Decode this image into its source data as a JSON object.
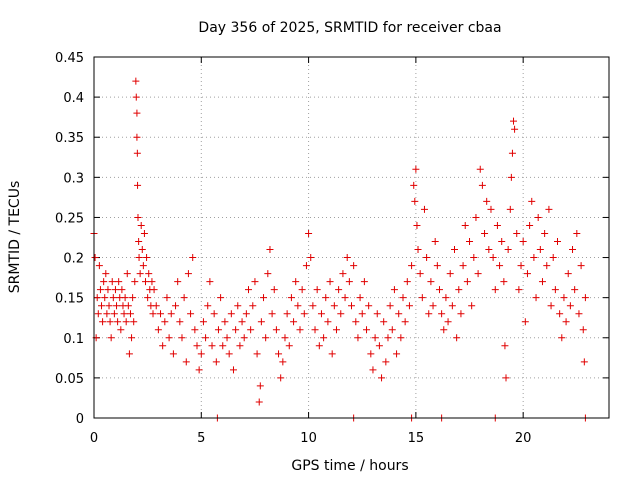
{
  "chart_data": {
    "type": "scatter",
    "title": "Day 356 of 2025, SRMTID for receiver cbaa",
    "xlabel": "GPS time / hours",
    "ylabel": "SRMTID / TECUs",
    "xlim": [
      0,
      24
    ],
    "ylim": [
      0,
      0.45
    ],
    "xticks": [
      0,
      5,
      10,
      15,
      20
    ],
    "xtick_labels": [
      "0",
      "5",
      "10",
      "15",
      "20"
    ],
    "yticks": [
      0,
      0.05,
      0.1,
      0.15,
      0.2,
      0.25,
      0.3,
      0.35,
      0.4,
      0.45
    ],
    "ytick_labels": [
      "0",
      "0.05",
      "0.1",
      "0.15",
      "0.2",
      "0.25",
      "0.3",
      "0.35",
      "0.4",
      "0.45"
    ],
    "grid": true,
    "marker": "plus",
    "color": "#e00000",
    "series": [
      {
        "name": "SRMTID",
        "points": [
          [
            0.0,
            0.23
          ],
          [
            0.05,
            0.2
          ],
          [
            0.1,
            0.1
          ],
          [
            0.15,
            0.15
          ],
          [
            0.2,
            0.13
          ],
          [
            0.25,
            0.19
          ],
          [
            0.3,
            0.16
          ],
          [
            0.35,
            0.14
          ],
          [
            0.4,
            0.12
          ],
          [
            0.45,
            0.17
          ],
          [
            0.5,
            0.15
          ],
          [
            0.55,
            0.18
          ],
          [
            0.6,
            0.13
          ],
          [
            0.65,
            0.16
          ],
          [
            0.7,
            0.14
          ],
          [
            0.75,
            0.12
          ],
          [
            0.8,
            0.1
          ],
          [
            0.85,
            0.17
          ],
          [
            0.9,
            0.15
          ],
          [
            0.95,
            0.13
          ],
          [
            1.0,
            0.16
          ],
          [
            1.05,
            0.14
          ],
          [
            1.1,
            0.12
          ],
          [
            1.15,
            0.17
          ],
          [
            1.2,
            0.15
          ],
          [
            1.25,
            0.11
          ],
          [
            1.3,
            0.16
          ],
          [
            1.35,
            0.14
          ],
          [
            1.4,
            0.13
          ],
          [
            1.45,
            0.15
          ],
          [
            1.5,
            0.12
          ],
          [
            1.55,
            0.18
          ],
          [
            1.6,
            0.14
          ],
          [
            1.65,
            0.08
          ],
          [
            1.7,
            0.13
          ],
          [
            1.75,
            0.1
          ],
          [
            1.8,
            0.15
          ],
          [
            1.85,
            0.12
          ],
          [
            1.9,
            0.17
          ],
          [
            1.95,
            0.42
          ],
          [
            1.97,
            0.4
          ],
          [
            2.0,
            0.38
          ],
          [
            2.0,
            0.35
          ],
          [
            2.02,
            0.33
          ],
          [
            2.03,
            0.29
          ],
          [
            2.05,
            0.25
          ],
          [
            2.08,
            0.22
          ],
          [
            2.1,
            0.2
          ],
          [
            2.15,
            0.18
          ],
          [
            2.2,
            0.24
          ],
          [
            2.25,
            0.21
          ],
          [
            2.3,
            0.19
          ],
          [
            2.35,
            0.23
          ],
          [
            2.4,
            0.17
          ],
          [
            2.45,
            0.2
          ],
          [
            2.5,
            0.15
          ],
          [
            2.55,
            0.18
          ],
          [
            2.6,
            0.16
          ],
          [
            2.65,
            0.14
          ],
          [
            2.7,
            0.17
          ],
          [
            2.75,
            0.13
          ],
          [
            2.8,
            0.16
          ],
          [
            2.9,
            0.14
          ],
          [
            3.0,
            0.11
          ],
          [
            3.1,
            0.13
          ],
          [
            3.2,
            0.09
          ],
          [
            3.3,
            0.12
          ],
          [
            3.4,
            0.15
          ],
          [
            3.5,
            0.1
          ],
          [
            3.6,
            0.13
          ],
          [
            3.7,
            0.08
          ],
          [
            3.8,
            0.14
          ],
          [
            3.9,
            0.17
          ],
          [
            4.0,
            0.12
          ],
          [
            4.1,
            0.1
          ],
          [
            4.2,
            0.15
          ],
          [
            4.3,
            0.07
          ],
          [
            4.4,
            0.18
          ],
          [
            4.5,
            0.13
          ],
          [
            4.6,
            0.2
          ],
          [
            4.7,
            0.11
          ],
          [
            4.8,
            0.09
          ],
          [
            4.9,
            0.06
          ],
          [
            5.0,
            0.08
          ],
          [
            5.1,
            0.12
          ],
          [
            5.2,
            0.1
          ],
          [
            5.3,
            0.14
          ],
          [
            5.4,
            0.17
          ],
          [
            5.5,
            0.09
          ],
          [
            5.6,
            0.13
          ],
          [
            5.7,
            0.07
          ],
          [
            5.8,
            0.11
          ],
          [
            5.9,
            0.15
          ],
          [
            6.0,
            0.09
          ],
          [
            6.1,
            0.12
          ],
          [
            6.2,
            0.1
          ],
          [
            6.3,
            0.08
          ],
          [
            6.4,
            0.13
          ],
          [
            6.5,
            0.06
          ],
          [
            6.6,
            0.11
          ],
          [
            6.7,
            0.14
          ],
          [
            6.8,
            0.09
          ],
          [
            6.9,
            0.12
          ],
          [
            7.0,
            0.1
          ],
          [
            7.1,
            0.13
          ],
          [
            7.2,
            0.16
          ],
          [
            7.3,
            0.11
          ],
          [
            7.4,
            0.14
          ],
          [
            7.5,
            0.17
          ],
          [
            7.6,
            0.08
          ],
          [
            7.7,
            0.02
          ],
          [
            7.75,
            0.04
          ],
          [
            7.8,
            0.12
          ],
          [
            7.9,
            0.15
          ],
          [
            8.0,
            0.1
          ],
          [
            8.1,
            0.18
          ],
          [
            8.2,
            0.21
          ],
          [
            8.3,
            0.13
          ],
          [
            8.4,
            0.16
          ],
          [
            8.5,
            0.11
          ],
          [
            8.6,
            0.08
          ],
          [
            8.7,
            0.05
          ],
          [
            8.8,
            0.07
          ],
          [
            8.9,
            0.1
          ],
          [
            9.0,
            0.13
          ],
          [
            9.1,
            0.09
          ],
          [
            9.2,
            0.15
          ],
          [
            9.3,
            0.12
          ],
          [
            9.4,
            0.17
          ],
          [
            9.5,
            0.14
          ],
          [
            9.6,
            0.11
          ],
          [
            9.7,
            0.16
          ],
          [
            9.8,
            0.13
          ],
          [
            9.9,
            0.19
          ],
          [
            10.0,
            0.23
          ],
          [
            10.1,
            0.2
          ],
          [
            10.2,
            0.14
          ],
          [
            10.3,
            0.11
          ],
          [
            10.4,
            0.16
          ],
          [
            10.5,
            0.09
          ],
          [
            10.6,
            0.13
          ],
          [
            10.7,
            0.1
          ],
          [
            10.8,
            0.15
          ],
          [
            10.9,
            0.12
          ],
          [
            11.0,
            0.17
          ],
          [
            11.1,
            0.08
          ],
          [
            11.2,
            0.14
          ],
          [
            11.3,
            0.11
          ],
          [
            11.4,
            0.16
          ],
          [
            11.5,
            0.13
          ],
          [
            11.6,
            0.18
          ],
          [
            11.7,
            0.15
          ],
          [
            11.8,
            0.2
          ],
          [
            11.9,
            0.17
          ],
          [
            12.0,
            0.14
          ],
          [
            12.1,
            0.19
          ],
          [
            12.2,
            0.12
          ],
          [
            12.3,
            0.1
          ],
          [
            12.4,
            0.15
          ],
          [
            12.5,
            0.13
          ],
          [
            12.6,
            0.17
          ],
          [
            12.7,
            0.11
          ],
          [
            12.8,
            0.14
          ],
          [
            12.9,
            0.08
          ],
          [
            13.0,
            0.06
          ],
          [
            13.1,
            0.1
          ],
          [
            13.2,
            0.13
          ],
          [
            13.3,
            0.09
          ],
          [
            13.4,
            0.05
          ],
          [
            13.5,
            0.12
          ],
          [
            13.6,
            0.07
          ],
          [
            13.7,
            0.1
          ],
          [
            13.8,
            0.14
          ],
          [
            13.9,
            0.11
          ],
          [
            14.0,
            0.16
          ],
          [
            14.1,
            0.08
          ],
          [
            14.2,
            0.13
          ],
          [
            14.3,
            0.1
          ],
          [
            14.4,
            0.15
          ],
          [
            14.5,
            0.12
          ],
          [
            14.6,
            0.17
          ],
          [
            14.7,
            0.14
          ],
          [
            14.8,
            0.19
          ],
          [
            14.9,
            0.29
          ],
          [
            14.95,
            0.27
          ],
          [
            15.0,
            0.31
          ],
          [
            15.05,
            0.24
          ],
          [
            15.1,
            0.21
          ],
          [
            15.2,
            0.18
          ],
          [
            15.3,
            0.15
          ],
          [
            15.4,
            0.26
          ],
          [
            15.5,
            0.2
          ],
          [
            15.6,
            0.13
          ],
          [
            15.7,
            0.17
          ],
          [
            15.8,
            0.14
          ],
          [
            15.9,
            0.22
          ],
          [
            16.0,
            0.19
          ],
          [
            16.1,
            0.16
          ],
          [
            16.2,
            0.13
          ],
          [
            16.3,
            0.11
          ],
          [
            16.4,
            0.15
          ],
          [
            16.5,
            0.12
          ],
          [
            16.6,
            0.18
          ],
          [
            16.7,
            0.14
          ],
          [
            16.8,
            0.21
          ],
          [
            16.9,
            0.1
          ],
          [
            17.0,
            0.16
          ],
          [
            17.1,
            0.13
          ],
          [
            17.2,
            0.19
          ],
          [
            17.3,
            0.24
          ],
          [
            17.4,
            0.17
          ],
          [
            17.5,
            0.22
          ],
          [
            17.6,
            0.14
          ],
          [
            17.7,
            0.2
          ],
          [
            17.8,
            0.25
          ],
          [
            17.9,
            0.18
          ],
          [
            18.0,
            0.31
          ],
          [
            18.1,
            0.29
          ],
          [
            18.2,
            0.23
          ],
          [
            18.3,
            0.27
          ],
          [
            18.4,
            0.21
          ],
          [
            18.5,
            0.26
          ],
          [
            18.6,
            0.2
          ],
          [
            18.7,
            0.16
          ],
          [
            18.8,
            0.24
          ],
          [
            18.9,
            0.19
          ],
          [
            19.0,
            0.22
          ],
          [
            19.1,
            0.17
          ],
          [
            19.15,
            0.09
          ],
          [
            19.2,
            0.05
          ],
          [
            19.3,
            0.21
          ],
          [
            19.4,
            0.26
          ],
          [
            19.45,
            0.3
          ],
          [
            19.5,
            0.33
          ],
          [
            19.55,
            0.37
          ],
          [
            19.6,
            0.36
          ],
          [
            19.7,
            0.23
          ],
          [
            19.8,
            0.16
          ],
          [
            19.9,
            0.19
          ],
          [
            20.0,
            0.22
          ],
          [
            20.1,
            0.12
          ],
          [
            20.2,
            0.18
          ],
          [
            20.3,
            0.24
          ],
          [
            20.4,
            0.27
          ],
          [
            20.5,
            0.2
          ],
          [
            20.6,
            0.15
          ],
          [
            20.7,
            0.25
          ],
          [
            20.8,
            0.21
          ],
          [
            20.9,
            0.17
          ],
          [
            21.0,
            0.23
          ],
          [
            21.1,
            0.19
          ],
          [
            21.2,
            0.26
          ],
          [
            21.3,
            0.14
          ],
          [
            21.4,
            0.2
          ],
          [
            21.5,
            0.16
          ],
          [
            21.6,
            0.22
          ],
          [
            21.7,
            0.13
          ],
          [
            21.8,
            0.1
          ],
          [
            21.9,
            0.15
          ],
          [
            22.0,
            0.12
          ],
          [
            22.1,
            0.18
          ],
          [
            22.2,
            0.14
          ],
          [
            22.3,
            0.21
          ],
          [
            22.4,
            0.16
          ],
          [
            22.5,
            0.23
          ],
          [
            22.6,
            0.13
          ],
          [
            22.7,
            0.19
          ],
          [
            22.8,
            0.11
          ],
          [
            22.85,
            0.07
          ],
          [
            22.9,
            0.15
          ],
          [
            5.75,
            0.0
          ],
          [
            12.1,
            0.0
          ],
          [
            14.8,
            0.0
          ],
          [
            16.2,
            0.0
          ],
          [
            18.7,
            0.0
          ],
          [
            22.9,
            0.0
          ]
        ]
      }
    ]
  }
}
